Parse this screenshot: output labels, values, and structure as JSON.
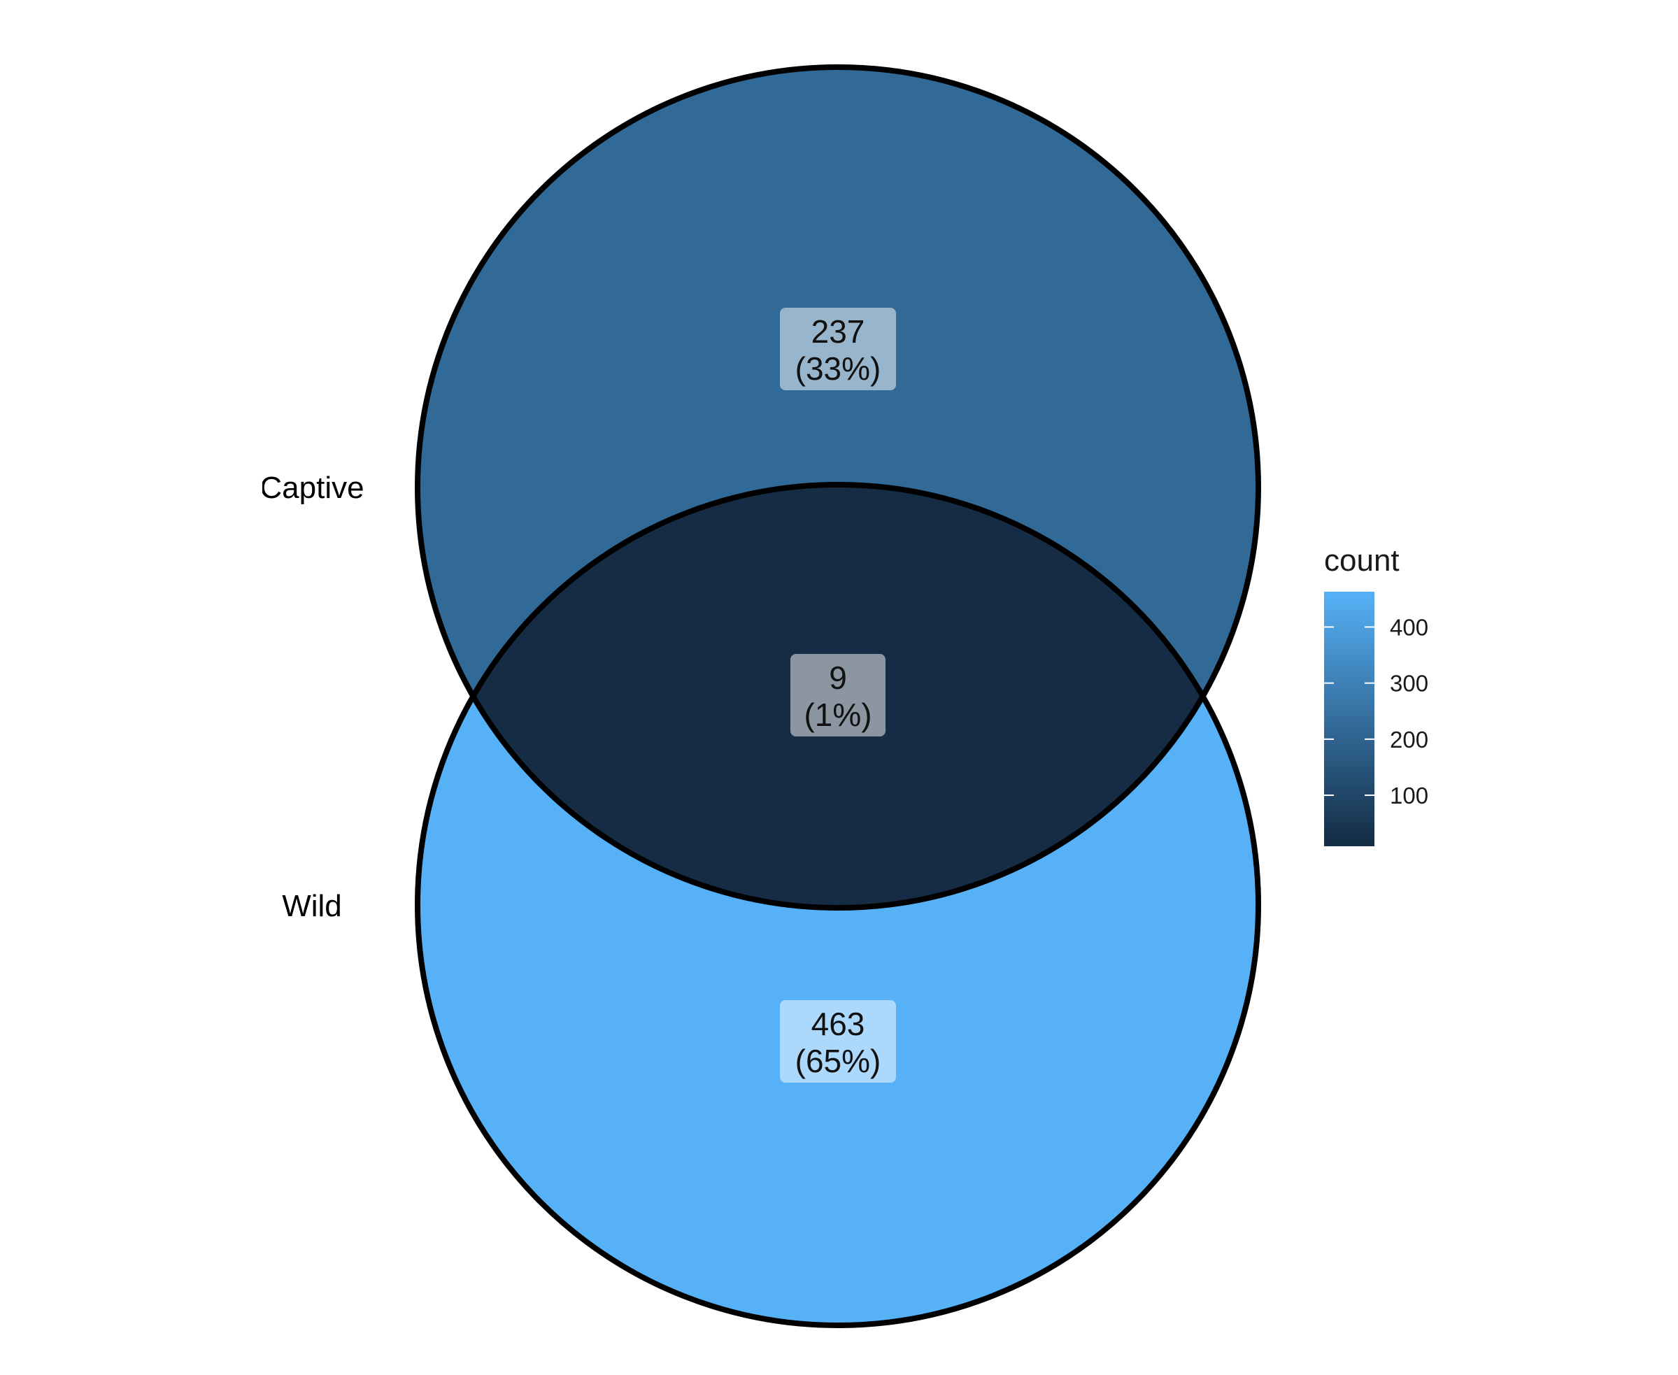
{
  "chart_data": {
    "type": "venn",
    "sets": [
      {
        "name": "Captive",
        "label_shown": "Captive",
        "fill": "#326a97"
      },
      {
        "name": "Wild",
        "label_shown": "Wild",
        "fill": "#56b1f7"
      }
    ],
    "regions": [
      {
        "id": "captive-only",
        "sets": [
          "Captive"
        ],
        "count": "237",
        "percent": "(33%)",
        "fill": "#326a97"
      },
      {
        "id": "intersection",
        "sets": [
          "Captive",
          "Wild"
        ],
        "count": "9",
        "percent": "(1%)",
        "fill": "#162c45"
      },
      {
        "id": "wild-only",
        "sets": [
          "Wild"
        ],
        "count": "463",
        "percent": "(65%)",
        "fill": "#56b1f7"
      }
    ],
    "legend": {
      "title": "count",
      "position": "right",
      "range": [
        9,
        463
      ],
      "ticks": [
        100,
        200,
        300,
        400
      ],
      "tick_labels": [
        "100",
        "200",
        "300",
        "400"
      ],
      "color_low": "#132b43",
      "color_high": "#56b1f7"
    }
  }
}
